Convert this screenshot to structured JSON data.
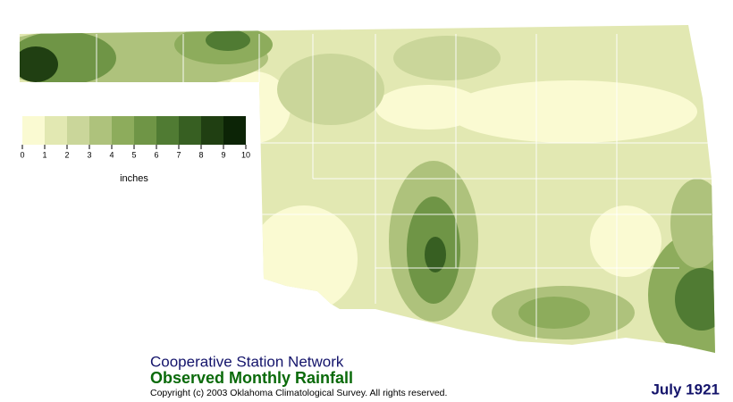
{
  "legend": {
    "unit": "inches",
    "ticks": [
      0,
      1,
      2,
      3,
      4,
      5,
      6,
      7,
      8,
      9,
      10
    ],
    "colors": [
      "#fafad2",
      "#e2e8b2",
      "#cad69a",
      "#aec27c",
      "#8dac5c",
      "#6f9546",
      "#507b33",
      "#375f22",
      "#203f12",
      "#0c2406"
    ]
  },
  "footer": {
    "network": "Cooperative Station Network",
    "title": "Observed Monthly Rainfall",
    "copyright": "Copyright (c) 2003 Oklahoma Climatological Survey. All rights reserved.",
    "date": "July 1921"
  }
}
